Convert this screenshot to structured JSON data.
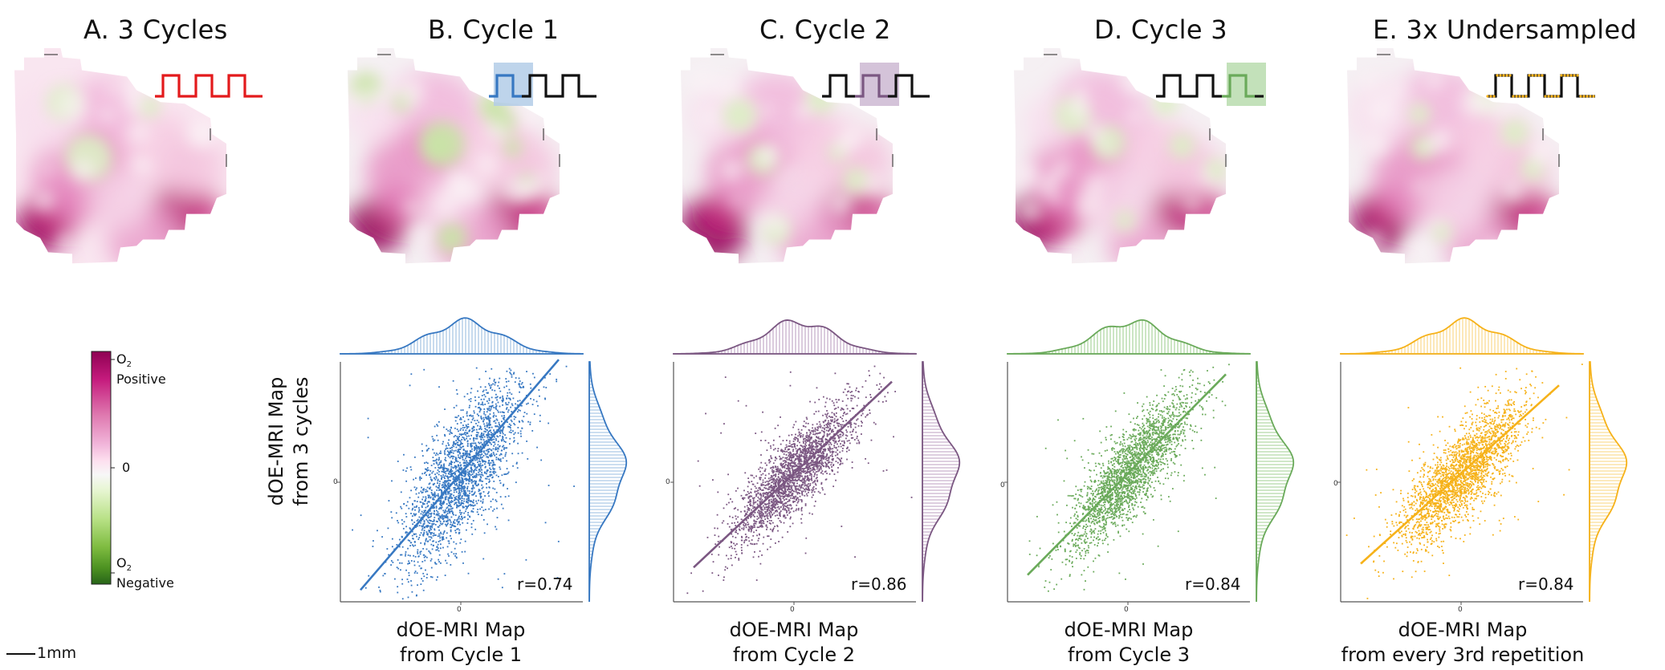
{
  "panels": [
    {
      "key": "A",
      "title": "A. 3 Cycles",
      "color": "#e31a1c",
      "highlight": null
    },
    {
      "key": "B",
      "title": "B. Cycle 1",
      "color": "#3778c2",
      "highlight": 0,
      "xlabel_line1": "dOE-MRI Map",
      "xlabel_line2": "from Cycle 1",
      "r": "r=0.74",
      "tint": "#b3cde8"
    },
    {
      "key": "C",
      "title": "C. Cycle 2",
      "color": "#7b5782",
      "highlight": 1,
      "xlabel_line1": "dOE-MRI Map",
      "xlabel_line2": "from Cycle 2",
      "r": "r=0.86",
      "tint": "#cdb8d2"
    },
    {
      "key": "D",
      "title": "D. Cycle 3",
      "color": "#6aaa5a",
      "highlight": 2,
      "xlabel_line1": "dOE-MRI Map",
      "xlabel_line2": "from Cycle 3",
      "r": "r=0.84",
      "tint": "#b9dcae"
    },
    {
      "key": "E",
      "title": "E. 3x Undersampled",
      "color": "#f6b21a",
      "highlight": null,
      "xlabel_line1": "dOE-MRI Map",
      "xlabel_line2": "from every 3rd repetition",
      "r": "r=0.84",
      "tint": "#fbe0a0"
    }
  ],
  "ylabel_line1": "dOE-MRI Map",
  "ylabel_line2": "from 3 cycles",
  "tick_zero": "0",
  "colorbar": {
    "top_label_sub": "O",
    "top_label_subscript": "2",
    "top_label_word": "Positive",
    "mid_label": "0",
    "bottom_label_sub": "O",
    "bottom_label_subscript": "2",
    "bottom_label_word": "Negative",
    "colors": [
      "#8e0152",
      "#c51b7d",
      "#de77ae",
      "#f1b6da",
      "#fde0ef",
      "#f7f7f7",
      "#e6f5d0",
      "#b8e186",
      "#7fbc41",
      "#4d9221",
      "#276419"
    ]
  },
  "scalebar": {
    "label": "1mm"
  },
  "chart_data": [
    {
      "type": "scatter",
      "title": "",
      "xlabel": "dOE-MRI Map from Cycle 1",
      "ylabel": "dOE-MRI Map from 3 cycles",
      "annotation": "r=0.74",
      "series": [
        {
          "values": []
        }
      ]
    },
    {
      "type": "scatter",
      "title": "",
      "xlabel": "dOE-MRI Map from Cycle 2",
      "ylabel": "dOE-MRI Map from 3 cycles",
      "annotation": "r=0.86",
      "series": [
        {
          "values": []
        }
      ]
    },
    {
      "type": "scatter",
      "title": "",
      "xlabel": "dOE-MRI Map from Cycle 3",
      "ylabel": "dOE-MRI Map from 3 cycles",
      "annotation": "r=0.84",
      "series": [
        {
          "values": []
        }
      ]
    },
    {
      "type": "scatter",
      "title": "",
      "xlabel": "dOE-MRI Map from every 3rd repetition",
      "ylabel": "dOE-MRI Map from 3 cycles",
      "annotation": "r=0.84",
      "series": [
        {
          "values": []
        }
      ]
    }
  ]
}
